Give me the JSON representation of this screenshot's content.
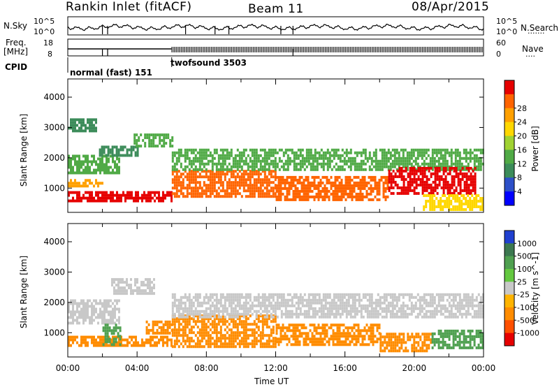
{
  "header": {
    "title": "Rankin Inlet (fitACF)",
    "beam": "Beam 11",
    "date": "08/Apr/2015"
  },
  "noise_panel": {
    "left_label": "N.Sky",
    "right_label": "N.Search",
    "right_label_legend": "·······",
    "left_ticks": [
      "10^5",
      "10^0"
    ],
    "right_ticks": [
      "10^5",
      "10^0"
    ]
  },
  "freq_panel": {
    "left_label_1": "Freq.",
    "left_label_2": "[MHz]",
    "right_label": "Nave",
    "right_label_legend": "····",
    "left_ticks": [
      "18",
      "8"
    ],
    "right_ticks": [
      "60",
      "0"
    ]
  },
  "cpid": {
    "label": "CPID",
    "segments": [
      {
        "start_hour": 0.0,
        "end_hour": 6.0,
        "name": "normal (fast) 151"
      },
      {
        "start_hour": 6.0,
        "end_hour": 24.0,
        "name": "twofsound 3503"
      }
    ]
  },
  "chart_data": [
    {
      "type": "heatmap",
      "title": "",
      "xlabel": "",
      "ylabel": "Slant Range [km]",
      "xlim": [
        0,
        24
      ],
      "ylim": [
        200,
        4600
      ],
      "yticks": [
        "1000",
        "2000",
        "3000",
        "4000"
      ],
      "colorbar": {
        "label": "Power [dB]",
        "ticks": [
          "4",
          "8",
          "12",
          "16",
          "20",
          "24",
          "28"
        ],
        "range": [
          0,
          30
        ],
        "colors": [
          "#0000ff",
          "#2d50c8",
          "#3c8c5a",
          "#50aa46",
          "#a0d232",
          "#ffd700",
          "#ffa000",
          "#ff6400",
          "#e60000"
        ]
      },
      "bands": [
        {
          "x": [
            0.0,
            6.0
          ],
          "y": [
            600,
            900
          ],
          "value": 28
        },
        {
          "x": [
            0.0,
            2.0
          ],
          "y": [
            1100,
            1300
          ],
          "value": 20
        },
        {
          "x": [
            0.0,
            3.0
          ],
          "y": [
            1500,
            2100
          ],
          "value": 10
        },
        {
          "x": [
            1.8,
            4.0
          ],
          "y": [
            2100,
            2400
          ],
          "value": 8
        },
        {
          "x": [
            3.8,
            6.0
          ],
          "y": [
            2400,
            2800
          ],
          "value": 12
        },
        {
          "x": [
            6.0,
            12.0
          ],
          "y": [
            700,
            1600
          ],
          "value": 26
        },
        {
          "x": [
            6.0,
            24.0
          ],
          "y": [
            1600,
            2300
          ],
          "value": 12
        },
        {
          "x": [
            12.0,
            18.5
          ],
          "y": [
            600,
            1400
          ],
          "value": 25
        },
        {
          "x": [
            18.5,
            23.5
          ],
          "y": [
            800,
            1700
          ],
          "value": 27
        },
        {
          "x": [
            20.5,
            24.0
          ],
          "y": [
            300,
            800
          ],
          "value": 18
        },
        {
          "x": [
            0.0,
            1.6
          ],
          "y": [
            2900,
            3300
          ],
          "value": 8
        }
      ]
    },
    {
      "type": "heatmap",
      "title": "",
      "xlabel": "Time UT",
      "ylabel": "Slant Range [km]",
      "xlim": [
        0,
        24
      ],
      "ylim": [
        200,
        4600
      ],
      "xticks": [
        "00:00",
        "04:00",
        "08:00",
        "12:00",
        "16:00",
        "20:00",
        "00:00"
      ],
      "yticks": [
        "1000",
        "2000",
        "3000",
        "4000"
      ],
      "colorbar": {
        "label": "Velocity [m s^-1]",
        "ticks": [
          "1000",
          "500",
          "100",
          "25",
          "-25",
          "-100",
          "-500",
          "-1000"
        ],
        "range": [
          -1000,
          1000
        ],
        "colors": [
          "#2040d0",
          "#3c7850",
          "#4fa050",
          "#64c840",
          "#c8c8c8",
          "#ffb400",
          "#ff8c00",
          "#ff5000",
          "#e60000"
        ]
      },
      "bands": [
        {
          "x": [
            0.0,
            6.0
          ],
          "y": [
            600,
            900
          ],
          "value": -200
        },
        {
          "x": [
            0.0,
            3.0
          ],
          "y": [
            1300,
            2100
          ],
          "value": 0
        },
        {
          "x": [
            2.0,
            3.0
          ],
          "y": [
            600,
            1300
          ],
          "value": 300
        },
        {
          "x": [
            4.5,
            6.0
          ],
          "y": [
            1000,
            1400
          ],
          "value": -400
        },
        {
          "x": [
            6.0,
            12.0
          ],
          "y": [
            500,
            1600
          ],
          "value": -300
        },
        {
          "x": [
            6.0,
            24.0
          ],
          "y": [
            1500,
            2300
          ],
          "value": 0
        },
        {
          "x": [
            12.0,
            18.0
          ],
          "y": [
            600,
            1300
          ],
          "value": -300
        },
        {
          "x": [
            18.0,
            21.0
          ],
          "y": [
            400,
            1000
          ],
          "value": -200
        },
        {
          "x": [
            21.0,
            24.0
          ],
          "y": [
            500,
            1100
          ],
          "value": 300
        },
        {
          "x": [
            2.5,
            5.0
          ],
          "y": [
            2300,
            2800
          ],
          "value": 0
        }
      ]
    }
  ]
}
